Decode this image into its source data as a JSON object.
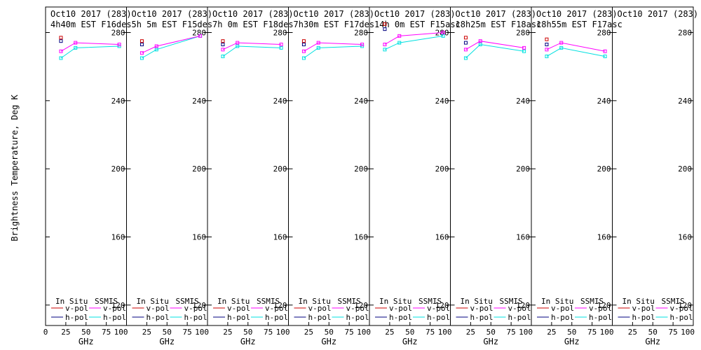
{
  "chart_data": {
    "type": "line",
    "ylabel": "Brightness Temperature, Deg K",
    "xlabel": "GHz",
    "ylim": [
      108,
      295
    ],
    "yticks": [
      120,
      160,
      200,
      240,
      280
    ],
    "xlim": [
      0,
      100
    ],
    "xtick_values": [
      0,
      25,
      50,
      75,
      100
    ],
    "xtick_labels": [
      "0",
      "25",
      "50",
      "75",
      "100"
    ],
    "legend": {
      "in_situ_title": "In Situ",
      "ssmis_title": "SSMIS",
      "vpol": "v-pol",
      "hpol": "h-pol"
    },
    "colors": {
      "insitu_v": "#cc0000",
      "insitu_h": "#000080",
      "ssmis_v": "#ff00ff",
      "ssmis_h": "#00e0e0"
    },
    "panels": [
      {
        "title1": "Oct10 2017 (283)",
        "title2": "4h40m  EST  F16des",
        "insitu_v": [
          [
            19,
            277
          ]
        ],
        "insitu_h": [
          [
            19,
            275
          ]
        ],
        "ssmis_v": [
          [
            19,
            269
          ],
          [
            37,
            274
          ],
          [
            91,
            273
          ]
        ],
        "ssmis_h": [
          [
            19,
            265
          ],
          [
            37,
            271
          ],
          [
            91,
            272
          ]
        ]
      },
      {
        "title1": "Oct10 2017 (283)",
        "title2": "5h 5m  EST  F15des",
        "insitu_v": [
          [
            19,
            275
          ]
        ],
        "insitu_h": [
          [
            19,
            273
          ]
        ],
        "ssmis_v": [
          [
            19,
            268
          ],
          [
            37,
            272
          ],
          [
            91,
            278
          ]
        ],
        "ssmis_h": [
          [
            19,
            265
          ],
          [
            37,
            270
          ],
          [
            91,
            278
          ]
        ]
      },
      {
        "title1": "Oct10 2017 (283)",
        "title2": "7h 0m  EST  F18des",
        "insitu_v": [
          [
            19,
            275
          ]
        ],
        "insitu_h": [
          [
            19,
            273
          ]
        ],
        "ssmis_v": [
          [
            19,
            270
          ],
          [
            37,
            274
          ],
          [
            91,
            273
          ]
        ],
        "ssmis_h": [
          [
            19,
            266
          ],
          [
            37,
            272
          ],
          [
            91,
            271
          ]
        ]
      },
      {
        "title1": "Oct10 2017 (283)",
        "title2": "7h30m  EST  F17des",
        "insitu_v": [
          [
            19,
            275
          ]
        ],
        "insitu_h": [
          [
            19,
            273
          ]
        ],
        "ssmis_v": [
          [
            19,
            269
          ],
          [
            37,
            274
          ],
          [
            91,
            273
          ]
        ],
        "ssmis_h": [
          [
            19,
            265
          ],
          [
            37,
            271
          ],
          [
            91,
            272
          ]
        ]
      },
      {
        "title1": "Oct10 2017 (283)",
        "title2": "14h 0m  EST  F15asc",
        "insitu_v": [
          [
            19,
            285
          ]
        ],
        "insitu_h": [
          [
            19,
            282
          ]
        ],
        "ssmis_v": [
          [
            19,
            273
          ],
          [
            37,
            278
          ],
          [
            91,
            280
          ]
        ],
        "ssmis_h": [
          [
            19,
            270
          ],
          [
            37,
            274
          ],
          [
            91,
            278
          ]
        ]
      },
      {
        "title1": "Oct10 2017 (283)",
        "title2": "18h25m  EST  F18asc",
        "insitu_v": [
          [
            19,
            277
          ]
        ],
        "insitu_h": [
          [
            19,
            274
          ]
        ],
        "ssmis_v": [
          [
            19,
            270
          ],
          [
            37,
            275
          ],
          [
            91,
            271
          ]
        ],
        "ssmis_h": [
          [
            19,
            265
          ],
          [
            37,
            273
          ],
          [
            91,
            269
          ]
        ]
      },
      {
        "title1": "Oct10 2017 (283)",
        "title2": "18h55m  EST  F17asc",
        "insitu_v": [
          [
            19,
            276
          ]
        ],
        "insitu_h": [
          [
            19,
            273
          ]
        ],
        "ssmis_v": [
          [
            19,
            270
          ],
          [
            37,
            274
          ],
          [
            91,
            269
          ]
        ],
        "ssmis_h": [
          [
            19,
            266
          ],
          [
            37,
            271
          ],
          [
            91,
            266
          ]
        ]
      },
      {
        "title1": "Oct10 2017 (283)",
        "title2": "",
        "insitu_v": [],
        "insitu_h": [],
        "ssmis_v": [],
        "ssmis_h": []
      }
    ]
  }
}
